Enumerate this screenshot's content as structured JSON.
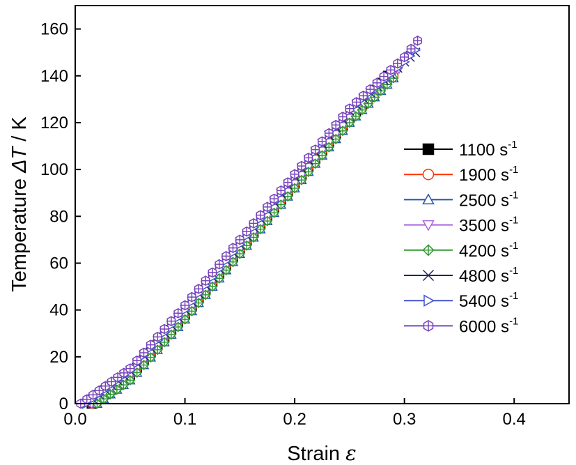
{
  "chart_data": {
    "type": "scatter",
    "xlabel": "Strain",
    "xlabel_symbol": "ε",
    "ylabel_prefix": "Temperature",
    "ylabel_symbol": "ΔT",
    "ylabel_suffix": " / K",
    "xlim": [
      0.0,
      0.45
    ],
    "ylim": [
      0,
      170
    ],
    "xticks": [
      0.0,
      0.1,
      0.2,
      0.3,
      0.4
    ],
    "xtick_labels": [
      "0.0",
      "0.1",
      "0.2",
      "0.3",
      "0.4"
    ],
    "yticks": [
      0,
      20,
      40,
      60,
      80,
      100,
      120,
      140,
      160
    ],
    "ytick_labels": [
      "0",
      "20",
      "40",
      "60",
      "80",
      "100",
      "120",
      "140",
      "160"
    ],
    "grid": false,
    "legend_position": "right",
    "series": [
      {
        "name": "1100 s",
        "unit_exp": "-1",
        "color": "#000000",
        "marker": "square-filled",
        "x": [
          0.015,
          0.05,
          0.1,
          0.15,
          0.2,
          0.25,
          0.285
        ],
        "y": [
          0,
          12,
          38,
          66,
          94,
          122,
          140
        ]
      },
      {
        "name": "1900 s",
        "unit_exp": "-1",
        "color": "#ff3300",
        "marker": "circle-open",
        "x": [
          0.015,
          0.05,
          0.1,
          0.15,
          0.2,
          0.25,
          0.29
        ],
        "y": [
          0,
          12,
          38,
          66,
          94,
          122,
          140
        ]
      },
      {
        "name": "2500 s",
        "unit_exp": "-1",
        "color": "#2255aa",
        "marker": "triangle-up-open",
        "x": [
          0.02,
          0.05,
          0.1,
          0.15,
          0.2,
          0.25,
          0.29
        ],
        "y": [
          0,
          10,
          36,
          64,
          92,
          120,
          139
        ]
      },
      {
        "name": "3500 s",
        "unit_exp": "-1",
        "color": "#aa66dd",
        "marker": "triangle-down-open",
        "x": [
          0.015,
          0.05,
          0.1,
          0.15,
          0.2,
          0.25,
          0.295
        ],
        "y": [
          0,
          12,
          38,
          66,
          94,
          122,
          143
        ]
      },
      {
        "name": "4200 s",
        "unit_exp": "-1",
        "color": "#339933",
        "marker": "diamond-cross",
        "x": [
          0.02,
          0.05,
          0.1,
          0.15,
          0.2,
          0.25,
          0.29
        ],
        "y": [
          0,
          10,
          36,
          64,
          92,
          120,
          139
        ]
      },
      {
        "name": "4800 s",
        "unit_exp": "-1",
        "color": "#222266",
        "marker": "x-cross",
        "x": [
          0.01,
          0.05,
          0.1,
          0.15,
          0.2,
          0.25,
          0.3,
          0.31
        ],
        "y": [
          0,
          14,
          40,
          68,
          97,
          125,
          146,
          150
        ]
      },
      {
        "name": "5400 s",
        "unit_exp": "-1",
        "color": "#4455cc",
        "marker": "triangle-right-open",
        "x": [
          0.01,
          0.05,
          0.1,
          0.15,
          0.2,
          0.25,
          0.3,
          0.31
        ],
        "y": [
          0,
          14,
          40,
          68,
          97,
          125,
          146,
          151
        ]
      },
      {
        "name": "6000 s",
        "unit_exp": "-1",
        "color": "#7744bb",
        "marker": "hexagon-cross",
        "x": [
          0.005,
          0.05,
          0.1,
          0.15,
          0.2,
          0.25,
          0.3,
          0.312
        ],
        "y": [
          0,
          15,
          42,
          70,
          98,
          126,
          148,
          155
        ]
      }
    ]
  }
}
